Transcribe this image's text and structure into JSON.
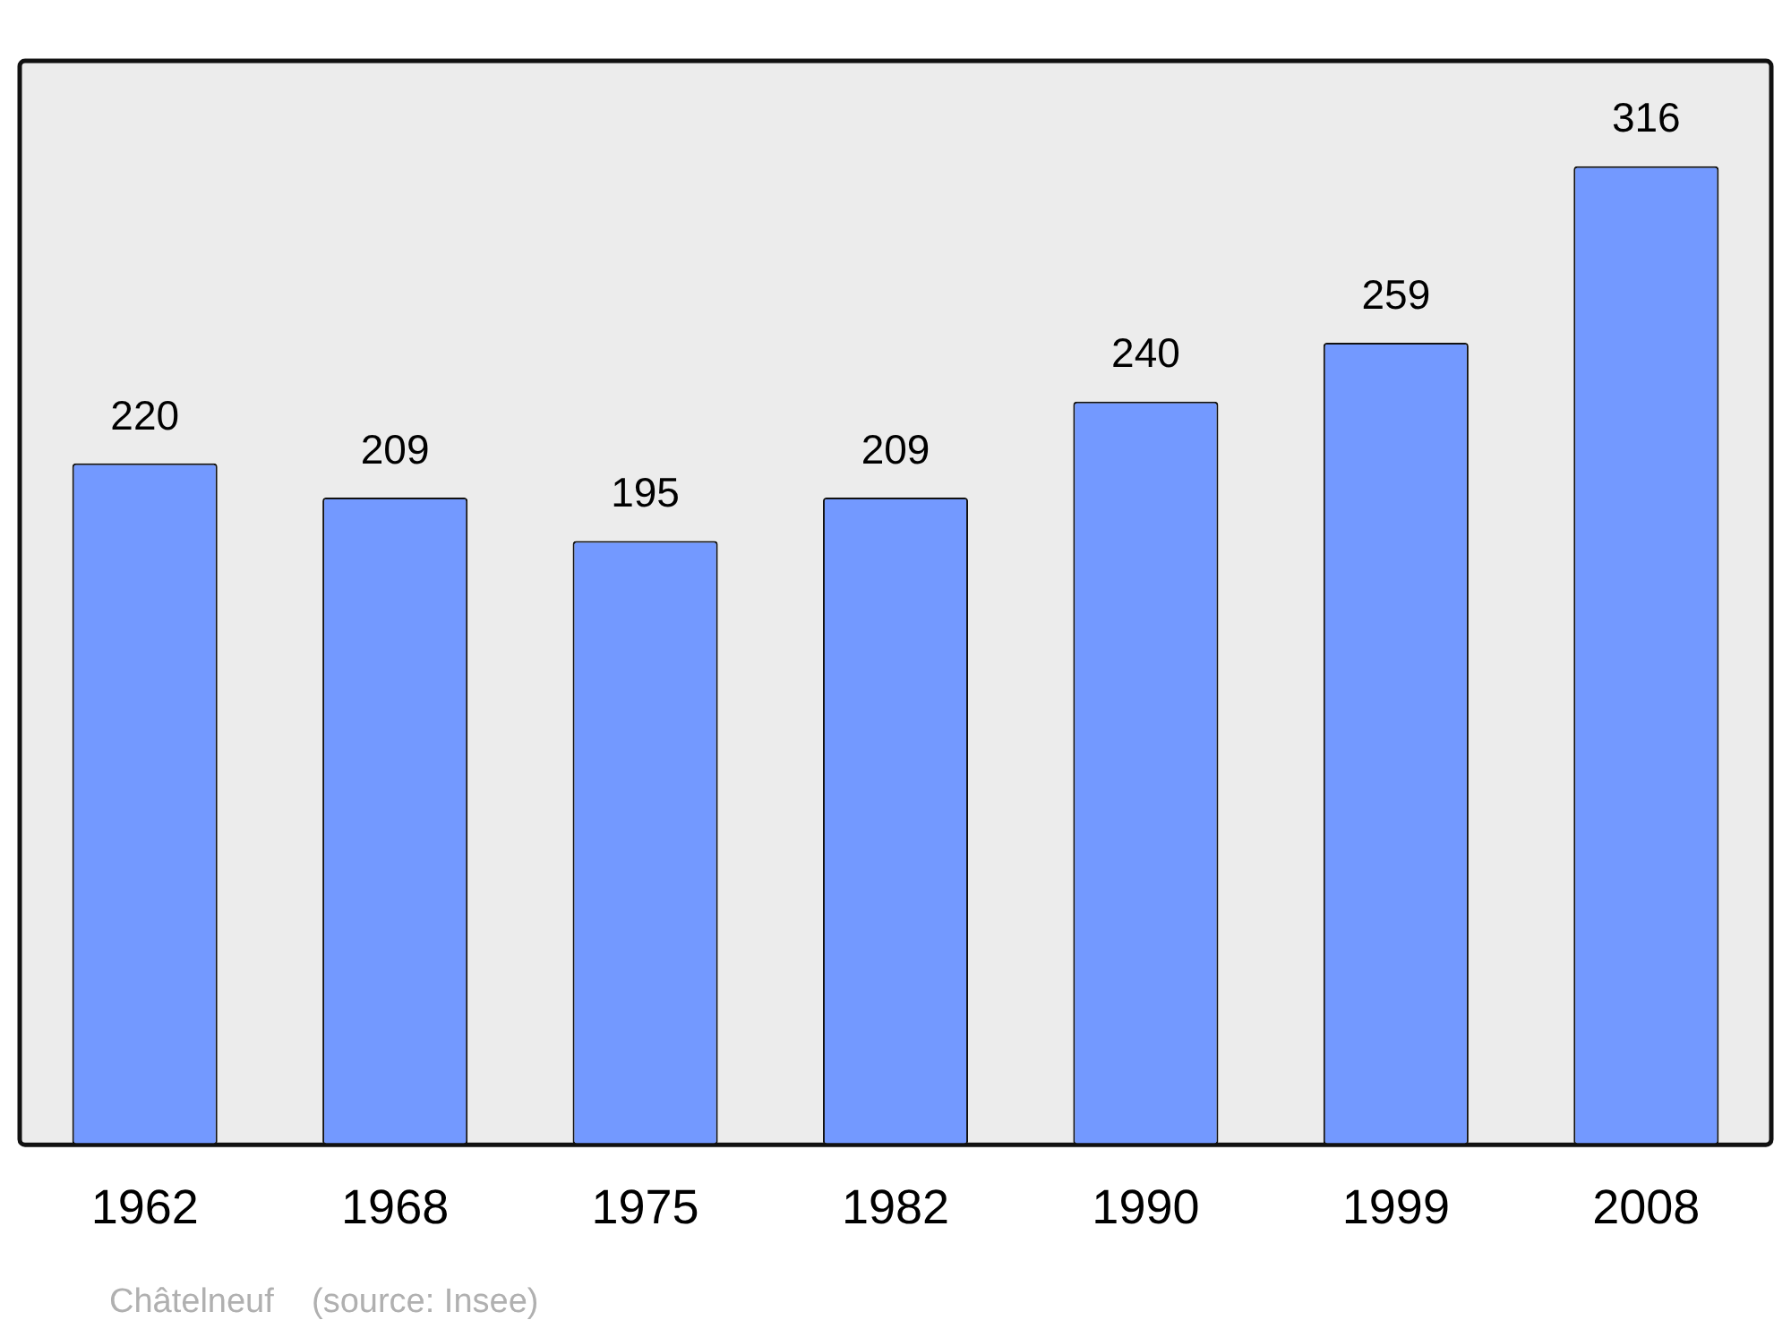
{
  "chart_data": {
    "type": "bar",
    "categories": [
      "1962",
      "1968",
      "1975",
      "1982",
      "1990",
      "1999",
      "2008"
    ],
    "values": [
      220,
      209,
      195,
      209,
      240,
      259,
      316
    ],
    "color": "#7399ff",
    "data_labels": true,
    "grid": false,
    "legend": false,
    "annotations": [
      "Châtelneuf    (source: Insee)"
    ]
  }
}
